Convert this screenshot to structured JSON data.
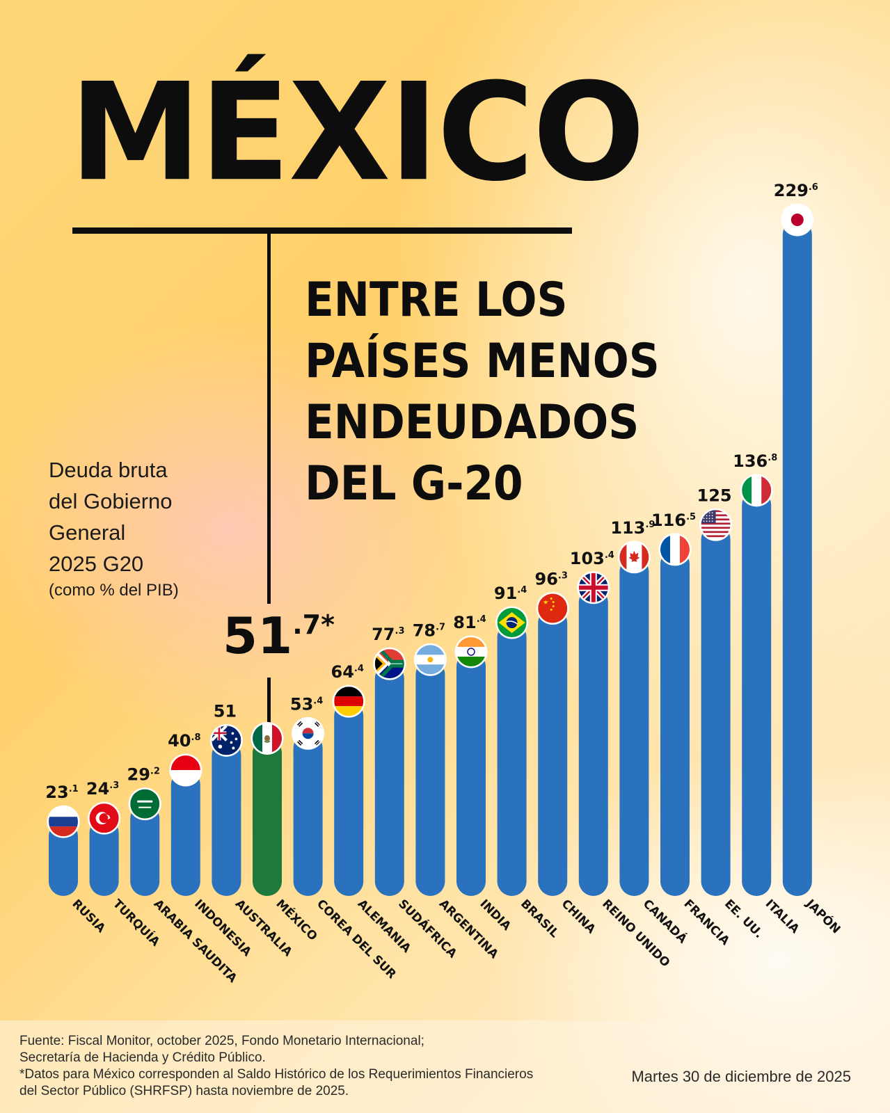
{
  "header": {
    "title": "MÉXICO",
    "subtitle": "ENTRE LOS\nPAÍSES MENOS\nENDEUDADOS\nDEL G-20"
  },
  "description": {
    "line1": "Deuda bruta",
    "line2": "del Gobierno",
    "line3": "General",
    "line4": "2025 G20",
    "unit": "(como % del PIB)"
  },
  "mexico_callout": {
    "int": "51",
    "dec": ".7*"
  },
  "chart_data": {
    "type": "bar",
    "title": "Deuda bruta del Gobierno General 2025 G20",
    "ylabel": "(como % del PIB)",
    "ylim": [
      0,
      230
    ],
    "highlight": "MÉXICO",
    "colors": {
      "bar": "#2a72bd",
      "highlight": "#1e7a3c"
    },
    "categories": [
      "RUSIA",
      "TURQUÍA",
      "ARABIA SAUDITA",
      "INDONESIA",
      "AUSTRALIA",
      "MÉXICO",
      "COREA DEL SUR",
      "ALEMANIA",
      "SUDÁFRICA",
      "ARGENTINA",
      "INDIA",
      "BRASIL",
      "CHINA",
      "REINO UNIDO",
      "CANADÁ",
      "FRANCIA",
      "EE. UU.",
      "ITALIA",
      "JAPÓN"
    ],
    "values": [
      23.1,
      24.3,
      29.2,
      40.8,
      51,
      51.7,
      53.4,
      64.4,
      77.3,
      78.7,
      81.4,
      91.4,
      96.3,
      103.4,
      113.9,
      116.5,
      125,
      136.8,
      229.6
    ],
    "labels": [
      {
        "int": "23",
        "dec": ".1"
      },
      {
        "int": "24",
        "dec": ".3"
      },
      {
        "int": "29",
        "dec": ".2"
      },
      {
        "int": "40",
        "dec": ".8"
      },
      {
        "int": "51",
        "dec": ""
      },
      {
        "int": "",
        "dec": ""
      },
      {
        "int": "53",
        "dec": ".4"
      },
      {
        "int": "64",
        "dec": ".4"
      },
      {
        "int": "77",
        "dec": ".3"
      },
      {
        "int": "78",
        "dec": ".7"
      },
      {
        "int": "81",
        "dec": ".4"
      },
      {
        "int": "91",
        "dec": ".4"
      },
      {
        "int": "96",
        "dec": ".3"
      },
      {
        "int": "103",
        "dec": ".4"
      },
      {
        "int": "113",
        "dec": ".9"
      },
      {
        "int": "116",
        "dec": ".5"
      },
      {
        "int": "125",
        "dec": ""
      },
      {
        "int": "136",
        "dec": ".8"
      },
      {
        "int": "229",
        "dec": ".6"
      }
    ],
    "flags": [
      "russia-flag-icon",
      "turkey-flag-icon",
      "saudi-arabia-flag-icon",
      "indonesia-flag-icon",
      "australia-flag-icon",
      "mexico-flag-icon",
      "south-korea-flag-icon",
      "germany-flag-icon",
      "south-africa-flag-icon",
      "argentina-flag-icon",
      "india-flag-icon",
      "brazil-flag-icon",
      "china-flag-icon",
      "uk-flag-icon",
      "canada-flag-icon",
      "france-flag-icon",
      "usa-flag-icon",
      "italy-flag-icon",
      "japan-flag-icon"
    ]
  },
  "footer": {
    "source_line1": "Fuente: Fiscal Monitor, october 2025, Fondo Monetario Internacional;",
    "source_line2": "Secretaría de Hacienda y Crédito Público.",
    "source_line3": "*Datos para México corresponden al Saldo Histórico de los Requerimientos Financieros",
    "source_line4": "del Sector Público (SHRFSP) hasta noviembre de 2025.",
    "date": "Martes 30 de diciembre de 2025"
  }
}
